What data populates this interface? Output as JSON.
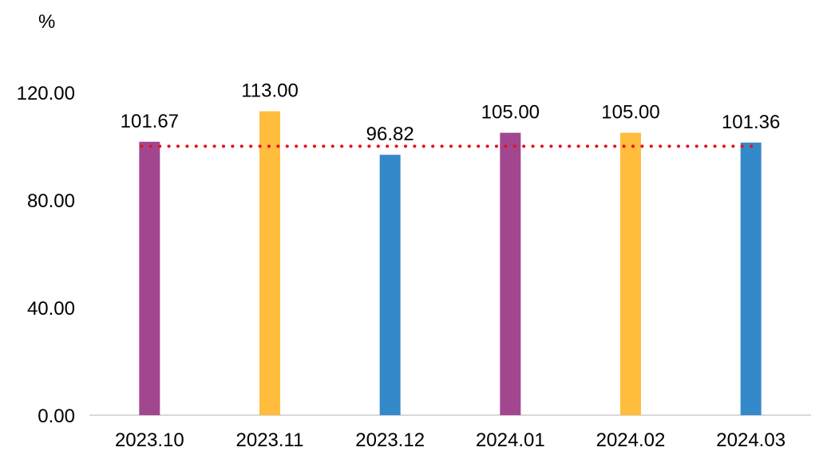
{
  "chart_data": {
    "type": "bar",
    "unit_label": "%",
    "categories": [
      "2023.10",
      "2023.11",
      "2023.12",
      "2024.01",
      "2024.02",
      "2024.03"
    ],
    "values": [
      101.67,
      113.0,
      96.82,
      105.0,
      105.0,
      101.36
    ],
    "value_labels": [
      "101.67",
      "113.00",
      "96.82",
      "105.00",
      "105.00",
      "101.36"
    ],
    "bar_colors": [
      "#A2478F",
      "#FFBC3D",
      "#3489C9",
      "#A2478F",
      "#FFBC3D",
      "#3489C9"
    ],
    "y_ticks": [
      "0.00",
      "40.00",
      "80.00",
      "120.00"
    ],
    "y_tick_values": [
      0,
      40,
      80,
      120
    ],
    "ylim": [
      0,
      120
    ],
    "reference_line": {
      "value": 100,
      "color": "#E3141B",
      "style": "dotted"
    },
    "axis_color": "#D9D9D9",
    "grid": false,
    "legend": false
  }
}
